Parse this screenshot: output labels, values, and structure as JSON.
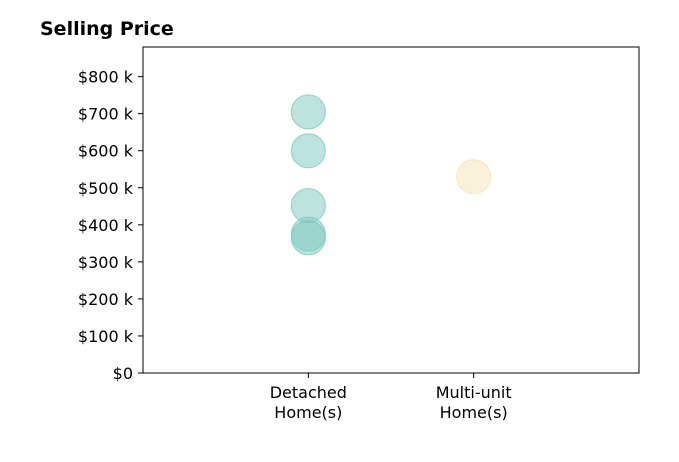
{
  "chart_data": {
    "type": "scatter",
    "title": "Selling Price",
    "xlabel": "",
    "ylabel": "",
    "categories": [
      [
        "Detached",
        "Home(s)"
      ],
      [
        "Multi-unit",
        "Home(s)"
      ]
    ],
    "xlim": [
      -1,
      2
    ],
    "ylim": [
      0,
      880000
    ],
    "y_ticks": [
      0,
      100000,
      200000,
      300000,
      400000,
      500000,
      600000,
      700000,
      800000
    ],
    "y_tick_labels": [
      "$0",
      "$100 k",
      "$200 k",
      "$300 k",
      "$400 k",
      "$500 k",
      "$600 k",
      "$700 k",
      "$800 k"
    ],
    "grid": false,
    "legend": "none",
    "series": [
      {
        "category_index": 0,
        "color": "#7cc7bd",
        "values": [
          705000,
          600000,
          452000,
          375000,
          365000
        ]
      },
      {
        "category_index": 1,
        "color": "#f6e3b8",
        "values": [
          530000
        ]
      }
    ]
  }
}
